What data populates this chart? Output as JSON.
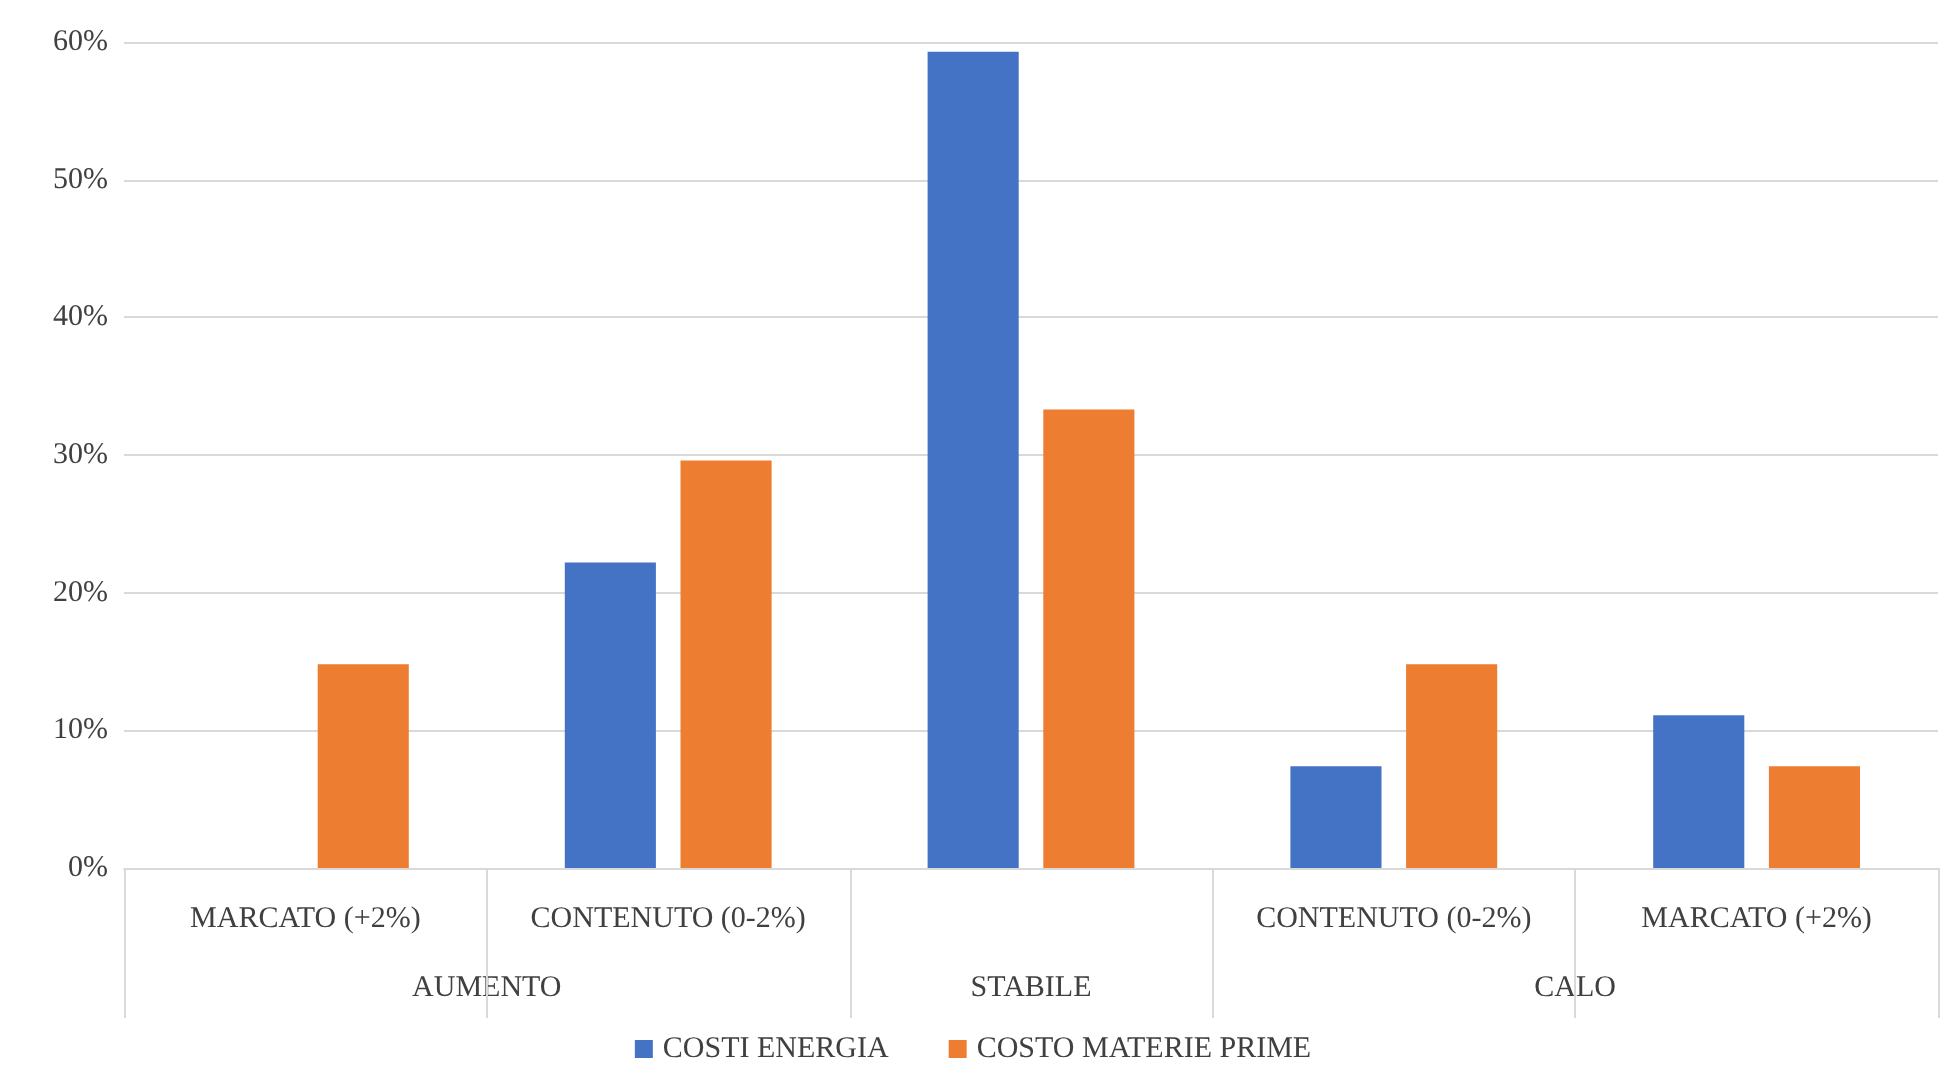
{
  "chart_data": {
    "type": "bar",
    "categories": [
      "MARCATO (+2%)",
      "CONTENUTO (0-2%)",
      null,
      "CONTENUTO (0-2%)",
      "MARCATO (+2%)"
    ],
    "annotations": [
      "AUMENTO",
      "STABILE",
      "CALO"
    ],
    "series": [
      {
        "name": "COSTI ENERGIA",
        "color": "#4472c4",
        "values": [
          0,
          22.2,
          59.3,
          7.4,
          11.1
        ]
      },
      {
        "name": "COSTO MATERIE PRIME",
        "color": "#ed7d31",
        "values": [
          14.8,
          29.6,
          33.3,
          14.8,
          7.4
        ]
      }
    ],
    "ylim": [
      0,
      60
    ],
    "yticks": [
      {
        "value": 0,
        "label": "0%"
      },
      {
        "value": 10,
        "label": "10%"
      },
      {
        "value": 20,
        "label": "20%"
      },
      {
        "value": 30,
        "label": "30%"
      },
      {
        "value": 40,
        "label": "40%"
      },
      {
        "value": 50,
        "label": "50%"
      },
      {
        "value": 60,
        "label": "60%"
      }
    ],
    "grid": "y",
    "legend": "bottom"
  }
}
